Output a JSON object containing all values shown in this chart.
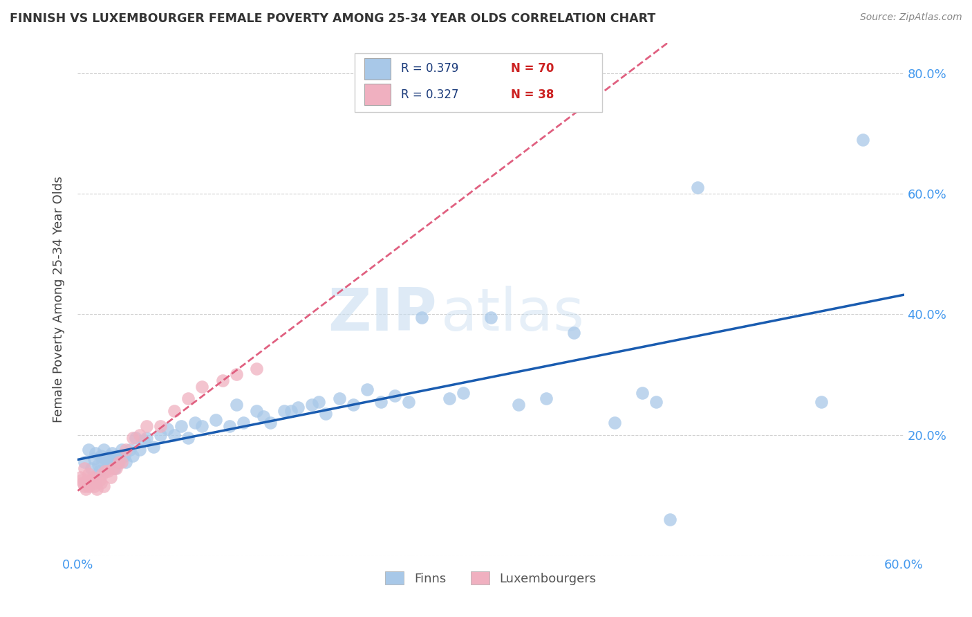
{
  "title": "FINNISH VS LUXEMBOURGER FEMALE POVERTY AMONG 25-34 YEAR OLDS CORRELATION CHART",
  "source": "Source: ZipAtlas.com",
  "ylabel": "Female Poverty Among 25-34 Year Olds",
  "xlim": [
    0.0,
    0.6
  ],
  "ylim": [
    0.0,
    0.85
  ],
  "yticks": [
    0.0,
    0.2,
    0.4,
    0.6,
    0.8
  ],
  "xticks": [
    0.0,
    0.1,
    0.2,
    0.3,
    0.4,
    0.5,
    0.6
  ],
  "ytick_labels": [
    "",
    "20.0%",
    "40.0%",
    "60.0%",
    "80.0%"
  ],
  "xtick_labels": [
    "0.0%",
    "",
    "",
    "",
    "",
    "",
    "60.0%"
  ],
  "grid_color": "#cccccc",
  "background_color": "#ffffff",
  "finns_color": "#a8c8e8",
  "luxembourgers_color": "#f0b0c0",
  "finns_line_color": "#1a5cb0",
  "luxembourgers_line_color": "#e06080",
  "tick_color": "#4499ee",
  "finns_x": [
    0.005,
    0.008,
    0.01,
    0.012,
    0.013,
    0.015,
    0.016,
    0.017,
    0.018,
    0.019,
    0.02,
    0.022,
    0.023,
    0.024,
    0.025,
    0.026,
    0.027,
    0.028,
    0.029,
    0.03,
    0.032,
    0.034,
    0.035,
    0.038,
    0.04,
    0.042,
    0.045,
    0.048,
    0.05,
    0.055,
    0.06,
    0.065,
    0.07,
    0.075,
    0.08,
    0.085,
    0.09,
    0.1,
    0.11,
    0.115,
    0.12,
    0.13,
    0.135,
    0.14,
    0.15,
    0.155,
    0.16,
    0.17,
    0.175,
    0.18,
    0.19,
    0.2,
    0.21,
    0.22,
    0.23,
    0.24,
    0.25,
    0.27,
    0.28,
    0.3,
    0.32,
    0.34,
    0.36,
    0.39,
    0.41,
    0.42,
    0.43,
    0.45,
    0.54,
    0.57
  ],
  "finns_y": [
    0.155,
    0.175,
    0.145,
    0.16,
    0.17,
    0.15,
    0.14,
    0.165,
    0.155,
    0.175,
    0.16,
    0.15,
    0.165,
    0.155,
    0.17,
    0.16,
    0.145,
    0.165,
    0.155,
    0.16,
    0.175,
    0.165,
    0.155,
    0.175,
    0.165,
    0.195,
    0.175,
    0.19,
    0.195,
    0.18,
    0.2,
    0.21,
    0.2,
    0.215,
    0.195,
    0.22,
    0.215,
    0.225,
    0.215,
    0.25,
    0.22,
    0.24,
    0.23,
    0.22,
    0.24,
    0.24,
    0.245,
    0.25,
    0.255,
    0.235,
    0.26,
    0.25,
    0.275,
    0.255,
    0.265,
    0.255,
    0.395,
    0.26,
    0.27,
    0.395,
    0.25,
    0.26,
    0.37,
    0.22,
    0.27,
    0.255,
    0.06,
    0.61,
    0.255,
    0.69
  ],
  "luxembourgers_x": [
    0.002,
    0.003,
    0.004,
    0.005,
    0.005,
    0.006,
    0.006,
    0.007,
    0.008,
    0.008,
    0.009,
    0.01,
    0.011,
    0.012,
    0.013,
    0.014,
    0.016,
    0.017,
    0.018,
    0.019,
    0.02,
    0.022,
    0.024,
    0.026,
    0.028,
    0.03,
    0.032,
    0.035,
    0.04,
    0.045,
    0.05,
    0.06,
    0.07,
    0.08,
    0.09,
    0.105,
    0.115,
    0.13
  ],
  "luxembourgers_y": [
    0.13,
    0.125,
    0.12,
    0.115,
    0.145,
    0.12,
    0.11,
    0.125,
    0.115,
    0.135,
    0.12,
    0.125,
    0.13,
    0.115,
    0.12,
    0.11,
    0.125,
    0.12,
    0.135,
    0.115,
    0.14,
    0.14,
    0.13,
    0.145,
    0.145,
    0.155,
    0.155,
    0.175,
    0.195,
    0.2,
    0.215,
    0.215,
    0.24,
    0.26,
    0.28,
    0.29,
    0.3,
    0.31
  ]
}
